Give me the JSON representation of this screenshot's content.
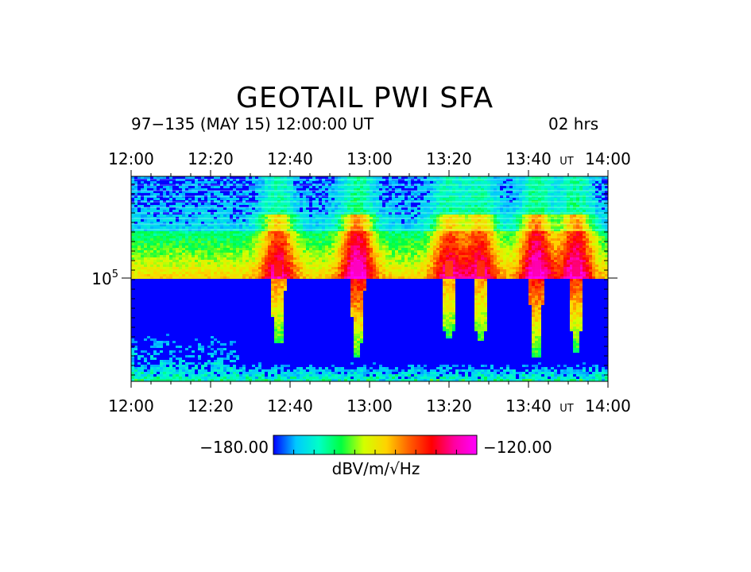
{
  "header": {
    "title": "GEOTAIL PWI SFA",
    "subtitle": "97−135 (MAY 15) 12:00:00 UT",
    "duration": "02 hrs"
  },
  "chart_data": {
    "type": "heatmap",
    "title": "GEOTAIL PWI SFA",
    "subtitle": "97−135 (MAY 15) 12:00:00 UT",
    "x_ticks": [
      "12:00",
      "12:20",
      "12:40",
      "13:00",
      "13:20",
      "13:40",
      "14:00"
    ],
    "x_unit_label": "UT",
    "y_ticks": [
      {
        "base": "10",
        "exp": "5"
      }
    ],
    "colorbar": {
      "min_label": "−180.00",
      "max_label": "−120.00",
      "min": -180,
      "max": -120,
      "unit": "dBV/m/√Hz",
      "colors": [
        "#0000ff",
        "#00c8ff",
        "#00ffc8",
        "#00ff40",
        "#d2ff00",
        "#ffd200",
        "#ff6000",
        "#ff0000",
        "#ff00a0",
        "#ff00ff"
      ]
    },
    "bursts": [
      {
        "time": "12:37",
        "level": 0.75
      },
      {
        "time": "12:57",
        "level": 0.92
      },
      {
        "time": "13:20",
        "level": 0.7
      },
      {
        "time": "13:28",
        "level": 0.72
      },
      {
        "time": "13:42",
        "level": 0.9
      },
      {
        "time": "13:52",
        "level": 0.85
      }
    ]
  }
}
